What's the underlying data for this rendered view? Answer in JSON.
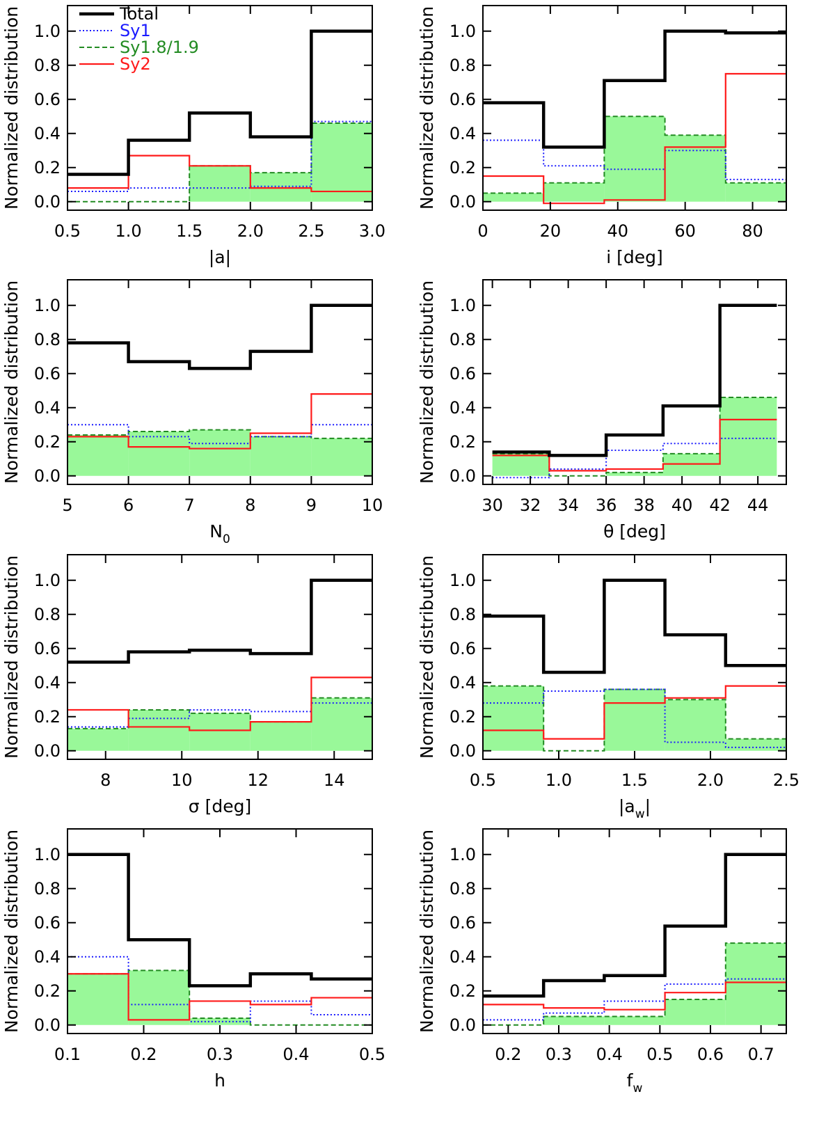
{
  "colors": {
    "total": "#000000",
    "sy1": "#1a1aff",
    "sy18": "#228b22",
    "sy2": "#ff1a1a",
    "fill": "#99f899"
  },
  "legend": {
    "total": "Total",
    "sy1": "Sy1",
    "sy18": "Sy1.8/1.9",
    "sy2": "Sy2"
  },
  "chart_data": [
    {
      "type": "step-histogram",
      "ylabel": "Normalized distribution",
      "xlabel": "|a|",
      "xlabel_sub": "",
      "xlim": [
        0.5,
        3.0
      ],
      "ylim": [
        -0.05,
        1.15
      ],
      "edges": [
        0.5,
        1.0,
        1.5,
        2.0,
        2.5,
        3.0
      ],
      "xticks": [
        0.5,
        1.0,
        1.5,
        2.0,
        2.5,
        3.0
      ],
      "xtick_labels": [
        "0.5",
        "1.0",
        "1.5",
        "2.0",
        "2.5",
        "3.0"
      ],
      "yticks": [
        0.0,
        0.2,
        0.4,
        0.6,
        0.8,
        1.0
      ],
      "ytick_labels": [
        "0.0",
        "0.2",
        "0.4",
        "0.6",
        "0.8",
        "1.0"
      ],
      "series": [
        {
          "name": "Total",
          "values": [
            0.16,
            0.36,
            0.52,
            0.38,
            1.0
          ]
        },
        {
          "name": "Sy1",
          "values": [
            0.06,
            0.08,
            0.08,
            0.09,
            0.47
          ]
        },
        {
          "name": "Sy1.8/1.9",
          "values": [
            0.0,
            0.0,
            0.21,
            0.17,
            0.46
          ]
        },
        {
          "name": "Sy2",
          "values": [
            0.08,
            0.27,
            0.21,
            0.08,
            0.06
          ]
        }
      ]
    },
    {
      "type": "step-histogram",
      "ylabel": "Normalized distribution",
      "xlabel": "i [deg]",
      "xlabel_sub": "",
      "xlim": [
        0,
        90
      ],
      "ylim": [
        -0.05,
        1.15
      ],
      "edges": [
        0,
        18,
        36,
        54,
        72,
        90
      ],
      "xticks": [
        0,
        20,
        40,
        60,
        80
      ],
      "xtick_labels": [
        "0",
        "20",
        "40",
        "60",
        "80"
      ],
      "yticks": [
        0.0,
        0.2,
        0.4,
        0.6,
        0.8,
        1.0
      ],
      "ytick_labels": [
        "0.0",
        "0.2",
        "0.4",
        "0.6",
        "0.8",
        "1.0"
      ],
      "series": [
        {
          "name": "Total",
          "values": [
            0.58,
            0.32,
            0.71,
            1.0,
            0.99
          ]
        },
        {
          "name": "Sy1",
          "values": [
            0.36,
            0.21,
            0.19,
            0.3,
            0.13
          ]
        },
        {
          "name": "Sy1.8/1.9",
          "values": [
            0.05,
            0.11,
            0.5,
            0.39,
            0.11
          ]
        },
        {
          "name": "Sy2",
          "values": [
            0.15,
            -0.01,
            0.01,
            0.32,
            0.75
          ]
        }
      ]
    },
    {
      "type": "step-histogram",
      "ylabel": "Normalized distribution",
      "xlabel": "N",
      "xlabel_sub": "0",
      "xlim": [
        5,
        10
      ],
      "ylim": [
        -0.05,
        1.15
      ],
      "edges": [
        5,
        6,
        7,
        8,
        9,
        10
      ],
      "xticks": [
        5,
        6,
        7,
        8,
        9,
        10
      ],
      "xtick_labels": [
        "5",
        "6",
        "7",
        "8",
        "9",
        "10"
      ],
      "yticks": [
        0.0,
        0.2,
        0.4,
        0.6,
        0.8,
        1.0
      ],
      "ytick_labels": [
        "0.0",
        "0.2",
        "0.4",
        "0.6",
        "0.8",
        "1.0"
      ],
      "series": [
        {
          "name": "Total",
          "values": [
            0.78,
            0.67,
            0.63,
            0.73,
            1.0
          ]
        },
        {
          "name": "Sy1",
          "values": [
            0.3,
            0.23,
            0.19,
            0.23,
            0.3
          ]
        },
        {
          "name": "Sy1.8/1.9",
          "values": [
            0.24,
            0.26,
            0.27,
            0.23,
            0.22
          ]
        },
        {
          "name": "Sy2",
          "values": [
            0.23,
            0.17,
            0.16,
            0.25,
            0.48
          ]
        }
      ]
    },
    {
      "type": "step-histogram",
      "ylabel": "Normalized distribution",
      "xlabel": "θ [deg]",
      "xlabel_sub": "",
      "xlim": [
        29.5,
        45.5
      ],
      "ylim": [
        -0.05,
        1.15
      ],
      "edges": [
        30,
        33,
        36,
        39,
        42,
        45
      ],
      "xticks": [
        30,
        32,
        34,
        36,
        38,
        40,
        42,
        44
      ],
      "xtick_labels": [
        "30",
        "32",
        "34",
        "36",
        "38",
        "40",
        "42",
        "44"
      ],
      "yticks": [
        0.0,
        0.2,
        0.4,
        0.6,
        0.8,
        1.0
      ],
      "ytick_labels": [
        "0.0",
        "0.2",
        "0.4",
        "0.6",
        "0.8",
        "1.0"
      ],
      "series": [
        {
          "name": "Total",
          "values": [
            0.14,
            0.12,
            0.24,
            0.41,
            1.0
          ]
        },
        {
          "name": "Sy1",
          "values": [
            -0.01,
            0.04,
            0.15,
            0.19,
            0.22
          ]
        },
        {
          "name": "Sy1.8/1.9",
          "values": [
            0.13,
            0.0,
            0.02,
            0.13,
            0.46
          ]
        },
        {
          "name": "Sy2",
          "values": [
            0.12,
            0.03,
            0.04,
            0.07,
            0.33
          ]
        }
      ]
    },
    {
      "type": "step-histogram",
      "ylabel": "Normalized distribution",
      "xlabel": "σ [deg]",
      "xlabel_sub": "",
      "xlim": [
        7,
        15
      ],
      "ylim": [
        -0.05,
        1.15
      ],
      "edges": [
        7.0,
        8.6,
        10.2,
        11.8,
        13.4,
        15.0
      ],
      "xticks": [
        8,
        10,
        12,
        14
      ],
      "xtick_labels": [
        "8",
        "10",
        "12",
        "14"
      ],
      "yticks": [
        0.0,
        0.2,
        0.4,
        0.6,
        0.8,
        1.0
      ],
      "ytick_labels": [
        "0.0",
        "0.2",
        "0.4",
        "0.6",
        "0.8",
        "1.0"
      ],
      "series": [
        {
          "name": "Total",
          "values": [
            0.52,
            0.58,
            0.59,
            0.57,
            1.0
          ]
        },
        {
          "name": "Sy1",
          "values": [
            0.14,
            0.19,
            0.24,
            0.23,
            0.28
          ]
        },
        {
          "name": "Sy1.8/1.9",
          "values": [
            0.13,
            0.24,
            0.22,
            0.17,
            0.31
          ]
        },
        {
          "name": "Sy2",
          "values": [
            0.24,
            0.14,
            0.12,
            0.17,
            0.43
          ]
        }
      ]
    },
    {
      "type": "step-histogram",
      "ylabel": "Normalized distribution",
      "xlabel": "|a",
      "xlabel_sub": "w",
      "xlabel_tail": "|",
      "xlim": [
        0.5,
        2.5
      ],
      "ylim": [
        -0.05,
        1.15
      ],
      "edges": [
        0.5,
        0.9,
        1.3,
        1.7,
        2.1,
        2.5
      ],
      "xticks": [
        0.5,
        1.0,
        1.5,
        2.0,
        2.5
      ],
      "xtick_labels": [
        "0.5",
        "1.0",
        "1.5",
        "2.0",
        "2.5"
      ],
      "yticks": [
        0.0,
        0.2,
        0.4,
        0.6,
        0.8,
        1.0
      ],
      "ytick_labels": [
        "0.0",
        "0.2",
        "0.4",
        "0.6",
        "0.8",
        "1.0"
      ],
      "series": [
        {
          "name": "Total",
          "values": [
            0.79,
            0.46,
            1.0,
            0.68,
            0.5
          ]
        },
        {
          "name": "Sy1",
          "values": [
            0.28,
            0.35,
            0.36,
            0.05,
            0.02
          ]
        },
        {
          "name": "Sy1.8/1.9",
          "values": [
            0.38,
            0.0,
            0.36,
            0.3,
            0.07
          ]
        },
        {
          "name": "Sy2",
          "values": [
            0.12,
            0.07,
            0.28,
            0.31,
            0.38
          ]
        }
      ]
    },
    {
      "type": "step-histogram",
      "ylabel": "Normalized distribution",
      "xlabel": "h",
      "xlabel_sub": "",
      "xlim": [
        0.1,
        0.5
      ],
      "ylim": [
        -0.05,
        1.15
      ],
      "edges": [
        0.1,
        0.18,
        0.26,
        0.34,
        0.42,
        0.5
      ],
      "xticks": [
        0.1,
        0.2,
        0.3,
        0.4,
        0.5
      ],
      "xtick_labels": [
        "0.1",
        "0.2",
        "0.3",
        "0.4",
        "0.5"
      ],
      "yticks": [
        0.0,
        0.2,
        0.4,
        0.6,
        0.8,
        1.0
      ],
      "ytick_labels": [
        "0.0",
        "0.2",
        "0.4",
        "0.6",
        "0.8",
        "1.0"
      ],
      "series": [
        {
          "name": "Total",
          "values": [
            1.0,
            0.5,
            0.23,
            0.3,
            0.27
          ]
        },
        {
          "name": "Sy1",
          "values": [
            0.4,
            0.12,
            0.02,
            0.14,
            0.06
          ]
        },
        {
          "name": "Sy1.8/1.9",
          "values": [
            0.3,
            0.32,
            0.04,
            0.0,
            0.0
          ]
        },
        {
          "name": "Sy2",
          "values": [
            0.3,
            0.03,
            0.14,
            0.12,
            0.16
          ]
        }
      ]
    },
    {
      "type": "step-histogram",
      "ylabel": "Normalized distribution",
      "xlabel": "f",
      "xlabel_sub": "w",
      "xlim": [
        0.15,
        0.75
      ],
      "ylim": [
        -0.05,
        1.15
      ],
      "edges": [
        0.15,
        0.27,
        0.39,
        0.51,
        0.63,
        0.75
      ],
      "xticks": [
        0.2,
        0.3,
        0.4,
        0.5,
        0.6,
        0.7
      ],
      "xtick_labels": [
        "0.2",
        "0.3",
        "0.4",
        "0.5",
        "0.6",
        "0.7"
      ],
      "yticks": [
        0.0,
        0.2,
        0.4,
        0.6,
        0.8,
        1.0
      ],
      "ytick_labels": [
        "0.0",
        "0.2",
        "0.4",
        "0.6",
        "0.8",
        "1.0"
      ],
      "series": [
        {
          "name": "Total",
          "values": [
            0.17,
            0.26,
            0.29,
            0.58,
            1.0
          ]
        },
        {
          "name": "Sy1",
          "values": [
            0.03,
            0.07,
            0.14,
            0.24,
            0.27
          ]
        },
        {
          "name": "Sy1.8/1.9",
          "values": [
            0.0,
            0.05,
            0.05,
            0.15,
            0.48
          ]
        },
        {
          "name": "Sy2",
          "values": [
            0.12,
            0.1,
            0.09,
            0.19,
            0.25
          ]
        }
      ]
    }
  ]
}
